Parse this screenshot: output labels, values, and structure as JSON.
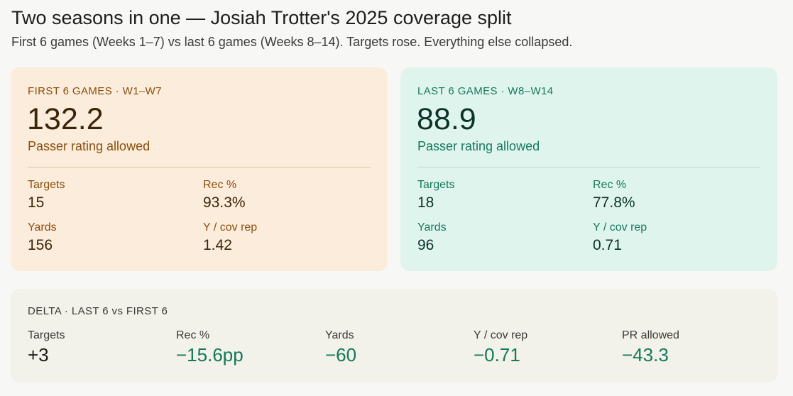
{
  "header": {
    "title": "Two seasons in one — Josiah Trotter's 2025 coverage split",
    "subtitle": "First 6 games (Weeks 1–7) vs last 6 games (Weeks 8–14). Targets rose. Everything else collapsed."
  },
  "first": {
    "label": "FIRST 6 GAMES · W1–W7",
    "big_value": "132.2",
    "big_label": "Passer rating allowed",
    "stats": [
      {
        "label": "Targets",
        "value": "15"
      },
      {
        "label": "Rec %",
        "value": "93.3%"
      },
      {
        "label": "Yards",
        "value": "156"
      },
      {
        "label": "Y / cov rep",
        "value": "1.42"
      }
    ]
  },
  "last": {
    "label": "LAST 6 GAMES · W8–W14",
    "big_value": "88.9",
    "big_label": "Passer rating allowed",
    "stats": [
      {
        "label": "Targets",
        "value": "18"
      },
      {
        "label": "Rec %",
        "value": "77.8%"
      },
      {
        "label": "Yards",
        "value": "96"
      },
      {
        "label": "Y / cov rep",
        "value": "0.71"
      }
    ]
  },
  "delta": {
    "label": "DELTA · LAST 6 vs FIRST 6",
    "items": [
      {
        "label": "Targets",
        "value": "+3"
      },
      {
        "label": "Rec %",
        "value": "−15.6pp"
      },
      {
        "label": "Yards",
        "value": "−60"
      },
      {
        "label": "Y / cov rep",
        "value": "−0.71"
      },
      {
        "label": "PR allowed",
        "value": "−43.3"
      }
    ]
  },
  "colors": {
    "first_card_bg": "#fbecdb",
    "first_accent": "#8a4f0c",
    "last_card_bg": "#e0f4ee",
    "last_accent": "#14795a",
    "delta_card_bg": "#f2f1ea"
  }
}
